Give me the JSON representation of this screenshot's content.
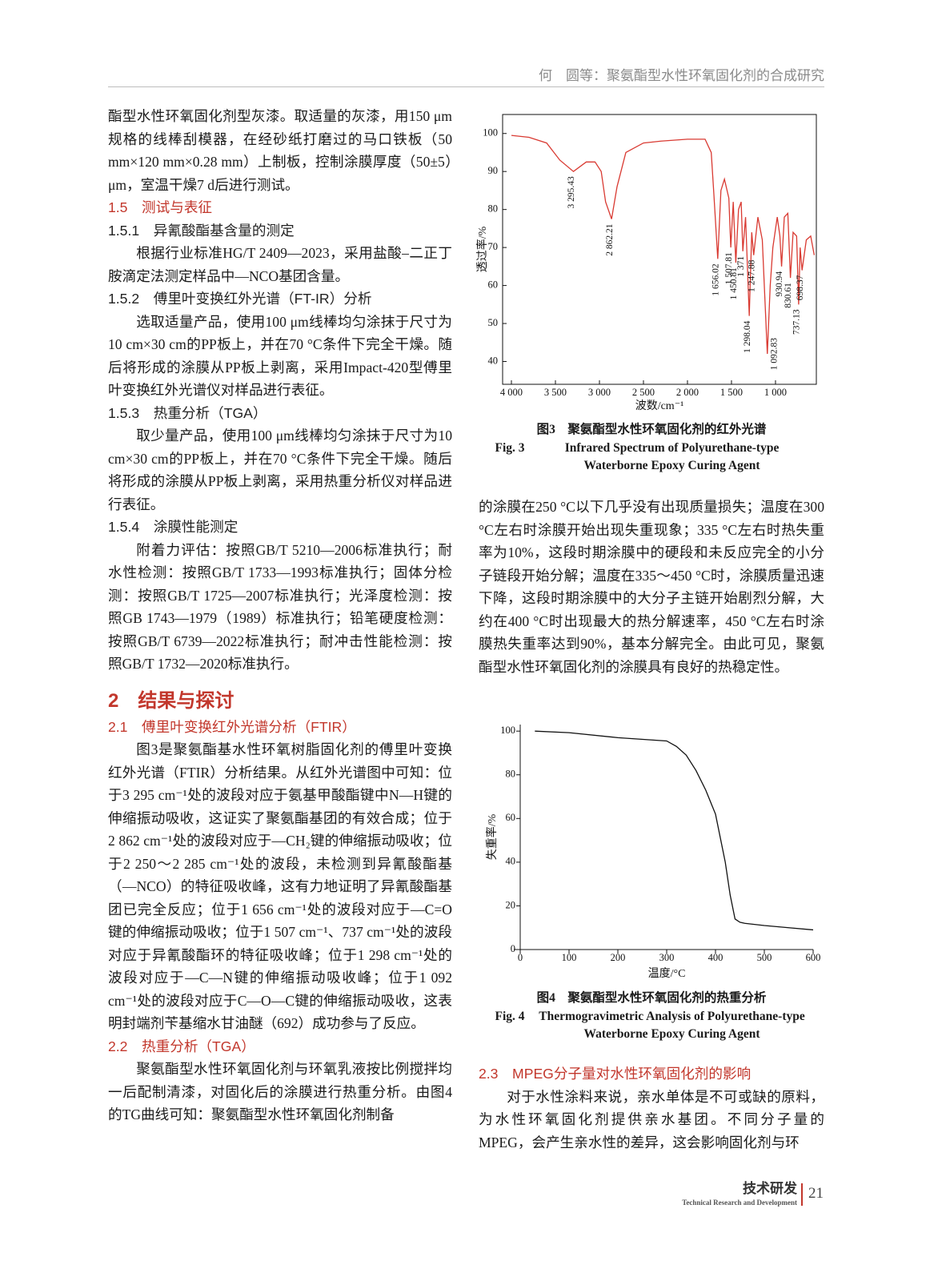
{
  "header": {
    "title": "何　圆等：聚氨酯型水性环氧固化剂的合成研究"
  },
  "left": [
    {
      "continued": "酯型水性环氧固化剂型灰漆。取适量的灰漆，用150 μm规格的线棒刮模器，在经砂纸打磨过的马口铁板（50 mm×120 mm×0.28 mm）上制板，控制涂膜厚度（50±5）μm，室温干燥7 d后进行测试。"
    },
    {
      "subsection": "1.5　测试与表征"
    },
    {
      "subsubsection": "1.5.1　异氰酸酯基含量的测定"
    },
    {
      "paragraph": "根据行业标准HG/T 2409—2023，采用盐酸–二正丁胺滴定法测定样品中—NCO基团含量。"
    },
    {
      "subsubsection": "1.5.2　傅里叶变换红外光谱（FT-IR）分析"
    },
    {
      "paragraph": "选取适量产品，使用100 μm线棒均匀涂抹于尺寸为10 cm×30 cm的PP板上，并在70 °C条件下完全干燥。随后将形成的涂膜从PP板上剥离，采用Impact-420型傅里叶变换红外光谱仪对样品进行表征。"
    },
    {
      "subsubsection": "1.5.3　热重分析（TGA）"
    },
    {
      "paragraph": "取少量产品，使用100 μm线棒均匀涂抹于尺寸为10 cm×30 cm的PP板上，并在70 °C条件下完全干燥。随后将形成的涂膜从PP板上剥离，采用热重分析仪对样品进行表征。"
    },
    {
      "subsubsection": "1.5.4　涂膜性能测定"
    },
    {
      "paragraph": "附着力评估：按照GB/T 5210—2006标准执行；耐水性检测：按照GB/T 1733—1993标准执行；固体分检测：按照GB/T 1725—2007标准执行；光泽度检测：按照GB 1743—1979（1989）标准执行；铅笔硬度检测：按照GB/T 6739—2022标准执行；耐冲击性能检测：按照GB/T 1732—2020标准执行。"
    },
    {
      "section": "2　结果与探讨"
    },
    {
      "subsection": "2.1　傅里叶变换红外光谱分析（FTIR）"
    },
    {
      "paragraph": "图3是聚氨酯基水性环氧树脂固化剂的傅里叶变换红外光谱（FTIR）分析结果。从红外光谱图中可知：位于3 295 cm⁻¹处的波段对应于氨基甲酸酯键中N—H键的伸缩振动吸收，这证实了聚氨酯基团的有效合成；位于2 862 cm⁻¹处的波段对应于—CH₂键的伸缩振动吸收；位于2 250～2 285 cm⁻¹处的波段，未检测到异氰酸酯基（—NCO）的特征吸收峰，这有力地证明了异氰酸酯基团已完全反应；位于1 656 cm⁻¹处的波段对应于—C=O键的伸缩振动吸收；位于1 507 cm⁻¹、737 cm⁻¹处的波段对应于异氰酸酯环的特征吸收峰；位于1 298 cm⁻¹处的波段对应于—C—N键的伸缩振动吸收峰；位于1 092 cm⁻¹处的波段对应于C—O—C键的伸缩振动吸收，这表明封端剂苄基缩水甘油醚（692）成功参与了反应。"
    },
    {
      "subsection": "2.2　热重分析（TGA）"
    },
    {
      "paragraph": "聚氨酯型水性环氧固化剂与环氧乳液按比例搅拌均一后配制清漆，对固化后的涂膜进行热重分析。由图4的TG曲线可知：聚氨酯型水性环氧固化剂制备"
    }
  ],
  "right_upper": [
    {
      "continued": "的涂膜在250 °C以下几乎没有出现质量损失；温度在300 °C左右时涂膜开始出现失重现象；335 °C左右时热失重率为10%，这段时期涂膜中的硬段和未反应完全的小分子链段开始分解；温度在335～450 °C时，涂膜质量迅速下降，这段时期涂膜中的大分子主链开始剧烈分解，大约在400 °C时出现最大的热分解速率，450 °C左右时涂膜热失重率达到90%，基本分解完全。由此可见，聚氨酯型水性环氧固化剂的涂膜具有良好的热稳定性。"
    }
  ],
  "right_lower": [
    {
      "subsection": "2.3　MPEG分子量对水性环氧固化剂的影响"
    },
    {
      "paragraph": "对于水性涂料来说，亲水单体是不可或缺的原料，为水性环氧固化剂提供亲水基团。不同分子量的MPEG，会产生亲水性的差异，这会影响固化剂与环"
    }
  ],
  "figures": [
    {
      "label_zh": "图3",
      "title_zh": "聚氨酯型水性环氧固化剂的红外光谱",
      "label_en": "Fig. 3",
      "title_en": "Infrared Spectrum of Polyurethane-type Waterborne Epoxy Curing Agent",
      "chart_data": {
        "type": "line",
        "frame": true,
        "x_label": "波数/cm⁻¹",
        "y_label": "透过率/%",
        "xlim": [
          4100,
          536
        ],
        "ylim": [
          34,
          105
        ],
        "xticks": [
          {
            "value": 4000,
            "label": "4 000"
          },
          {
            "value": 3500,
            "label": "3 500"
          },
          {
            "value": 3000,
            "label": "3 000"
          },
          {
            "value": 2500,
            "label": "2 500"
          },
          {
            "value": 2000,
            "label": "2 000"
          },
          {
            "value": 1500,
            "label": "1 500"
          },
          {
            "value": 1000,
            "label": "1 000"
          }
        ],
        "yticks": [
          40,
          50,
          60,
          70,
          80,
          90,
          100
        ],
        "color": "#d93a32",
        "x": [
          4000,
          3800,
          3600,
          3450,
          3295.43,
          3150,
          3050,
          2980,
          2930,
          2862.21,
          2800,
          2700,
          2500,
          2300,
          2000,
          1800,
          1730,
          1700,
          1656.02,
          1620,
          1580,
          1530,
          1507.81,
          1480,
          1450.81,
          1420,
          1390,
          1371,
          1340,
          1298.04,
          1270,
          1247.88,
          1200,
          1150,
          1092.83,
          1060,
          1030,
          980,
          950,
          930.94,
          900,
          860,
          830.61,
          800,
          760,
          737.13,
          720,
          698.37,
          650,
          600,
          560
        ],
        "values": [
          99.5,
          99,
          97.5,
          93,
          90,
          92.5,
          92.5,
          90,
          82,
          77.5,
          86,
          95,
          97.5,
          98,
          98.5,
          98.5,
          95,
          84,
          67,
          85,
          88,
          83,
          70,
          82,
          66,
          80,
          82,
          69,
          78,
          52,
          74,
          68,
          78,
          72,
          42,
          60,
          70,
          78,
          73,
          65,
          78,
          79,
          62,
          74,
          73,
          55,
          70,
          64,
          72,
          73,
          68
        ],
        "annotations": [
          {
            "value": 3295.43,
            "label": "3 295.43"
          },
          {
            "value": 2862.21,
            "label": "2 862.21"
          },
          {
            "value": 1656.02,
            "label": "1 656.02"
          },
          {
            "value": 1507.81,
            "label": "1 507.81"
          },
          {
            "value": 1450.81,
            "label": "1 450.81"
          },
          {
            "value": 1371,
            "label": "1 371"
          },
          {
            "value": 1298.04,
            "label": "1 298.04"
          },
          {
            "value": 1247.88,
            "label": "1 247.88"
          },
          {
            "value": 1092.83,
            "label": "1 092.83"
          },
          {
            "value": 930.94,
            "label": "930.94"
          },
          {
            "value": 830.61,
            "label": "830.61"
          },
          {
            "value": 737.13,
            "label": "737.13"
          },
          {
            "value": 698.37,
            "label": "698.37"
          }
        ]
      }
    },
    {
      "label_zh": "图4",
      "title_zh": "聚氨酯型水性环氧固化剂的热重分析",
      "label_en": "Fig. 4",
      "title_en": "Thermogravimetric Analysis of Polyurethane-type Waterborne Epoxy Curing Agent",
      "chart_data": {
        "type": "line",
        "frame": false,
        "x_label": "温度/°C",
        "y_label": "失重率/%",
        "xlim": [
          0,
          600
        ],
        "ylim": [
          0,
          103
        ],
        "xticks": [
          0,
          100,
          200,
          300,
          400,
          500,
          600
        ],
        "yticks": [
          0,
          20,
          40,
          60,
          80,
          100
        ],
        "color": "#111111",
        "x": [
          30,
          100,
          200,
          300,
          320,
          340,
          360,
          380,
          400,
          420,
          430,
          440,
          450,
          460,
          500,
          550,
          600
        ],
        "values": [
          100,
          99.3,
          97,
          95.5,
          93,
          89,
          82,
          73,
          62,
          40,
          25,
          14,
          12.5,
          12,
          11,
          10,
          9
        ]
      }
    }
  ],
  "footer": {
    "section_zh": "技术研发",
    "section_en": "Technical Research and Development",
    "page": 21
  }
}
